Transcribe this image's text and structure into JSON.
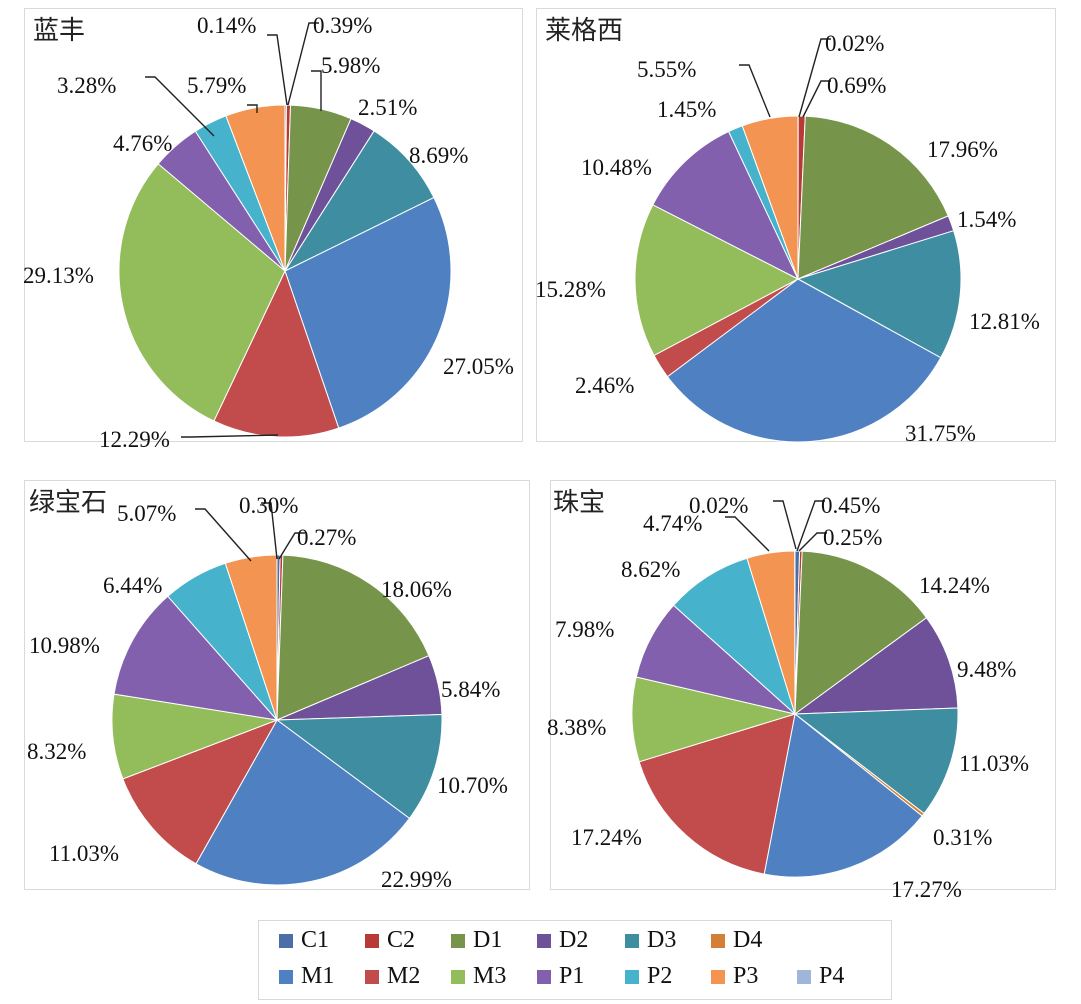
{
  "colors": {
    "C1": "#4a6fa8",
    "C2": "#b73a37",
    "D1": "#76954a",
    "D2": "#6f5199",
    "D3": "#3f8da0",
    "D4": "#d47f38",
    "M1": "#4f81c2",
    "M2": "#c24c4c",
    "M3": "#93bd5a",
    "P1": "#8260ae",
    "P2": "#46b2cb",
    "P3": "#f39452",
    "P4": "#9fb6da"
  },
  "legend": {
    "row1": [
      "C1",
      "C2",
      "D1",
      "D2",
      "D3",
      "D4"
    ],
    "row2": [
      "M1",
      "M2",
      "M3",
      "P1",
      "P2",
      "P3",
      "P4"
    ]
  },
  "chart_data": [
    {
      "type": "pie",
      "title": "蓝丰",
      "slices": [
        {
          "name": "C1",
          "value": 0.14,
          "label": "0.14%"
        },
        {
          "name": "C2",
          "value": 0.39,
          "label": "0.39%"
        },
        {
          "name": "D1",
          "value": 5.98,
          "label": "5.98%"
        },
        {
          "name": "D2",
          "value": 2.51,
          "label": "2.51%"
        },
        {
          "name": "D3",
          "value": 8.69,
          "label": "8.69%"
        },
        {
          "name": "D4",
          "value": 0,
          "label": ""
        },
        {
          "name": "M1",
          "value": 27.05,
          "label": "27.05%"
        },
        {
          "name": "M2",
          "value": 12.29,
          "label": "12.29%"
        },
        {
          "name": "M3",
          "value": 29.13,
          "label": "29.13%"
        },
        {
          "name": "P1",
          "value": 4.76,
          "label": "4.76%"
        },
        {
          "name": "P2",
          "value": 3.28,
          "label": "3.28%"
        },
        {
          "name": "P3",
          "value": 5.79,
          "label": "5.79%"
        },
        {
          "name": "P4",
          "value": 0,
          "label": ""
        }
      ]
    },
    {
      "type": "pie",
      "title": "莱格西",
      "slices": [
        {
          "name": "C1",
          "value": 0.02,
          "label": "0.02%"
        },
        {
          "name": "C2",
          "value": 0.69,
          "label": "0.69%"
        },
        {
          "name": "D1",
          "value": 17.96,
          "label": "17.96%"
        },
        {
          "name": "D2",
          "value": 1.54,
          "label": "1.54%"
        },
        {
          "name": "D3",
          "value": 12.81,
          "label": "12.81%"
        },
        {
          "name": "D4",
          "value": 0,
          "label": ""
        },
        {
          "name": "M1",
          "value": 31.75,
          "label": "31.75%"
        },
        {
          "name": "M2",
          "value": 2.46,
          "label": "2.46%"
        },
        {
          "name": "M3",
          "value": 15.28,
          "label": "15.28%"
        },
        {
          "name": "P1",
          "value": 10.48,
          "label": "10.48%"
        },
        {
          "name": "P2",
          "value": 1.45,
          "label": "1.45%"
        },
        {
          "name": "P3",
          "value": 5.55,
          "label": "5.55%"
        },
        {
          "name": "P4",
          "value": 0,
          "label": ""
        }
      ]
    },
    {
      "type": "pie",
      "title": "绿宝石",
      "slices": [
        {
          "name": "C1",
          "value": 0.3,
          "label": "0.30%"
        },
        {
          "name": "C2",
          "value": 0.27,
          "label": "0.27%"
        },
        {
          "name": "D1",
          "value": 18.06,
          "label": "18.06%"
        },
        {
          "name": "D2",
          "value": 5.84,
          "label": "5.84%"
        },
        {
          "name": "D3",
          "value": 10.7,
          "label": "10.70%"
        },
        {
          "name": "D4",
          "value": 0,
          "label": ""
        },
        {
          "name": "M1",
          "value": 22.99,
          "label": "22.99%"
        },
        {
          "name": "M2",
          "value": 11.03,
          "label": "11.03%"
        },
        {
          "name": "M3",
          "value": 8.32,
          "label": "8.32%"
        },
        {
          "name": "P1",
          "value": 10.98,
          "label": "10.98%"
        },
        {
          "name": "P2",
          "value": 6.44,
          "label": "6.44%"
        },
        {
          "name": "P3",
          "value": 5.07,
          "label": "5.07%"
        },
        {
          "name": "P4",
          "value": 0,
          "label": ""
        }
      ]
    },
    {
      "type": "pie",
      "title": "珠宝",
      "slices": [
        {
          "name": "C1",
          "value": 0.45,
          "label": "0.45%"
        },
        {
          "name": "C2",
          "value": 0.25,
          "label": "0.25%"
        },
        {
          "name": "D1",
          "value": 14.24,
          "label": "14.24%"
        },
        {
          "name": "D2",
          "value": 9.48,
          "label": "9.48%"
        },
        {
          "name": "D3",
          "value": 11.03,
          "label": "11.03%"
        },
        {
          "name": "D4",
          "value": 0.31,
          "label": "0.31%"
        },
        {
          "name": "M1",
          "value": 17.27,
          "label": "17.27%"
        },
        {
          "name": "M2",
          "value": 17.24,
          "label": "17.24%"
        },
        {
          "name": "M3",
          "value": 8.38,
          "label": "8.38%"
        },
        {
          "name": "P1",
          "value": 7.98,
          "label": "7.98%"
        },
        {
          "name": "P2",
          "value": 8.62,
          "label": "8.62%"
        },
        {
          "name": "P3",
          "value": 4.74,
          "label": "4.74%"
        },
        {
          "name": "P4",
          "value": 0.02,
          "label": "0.02%"
        }
      ]
    }
  ]
}
